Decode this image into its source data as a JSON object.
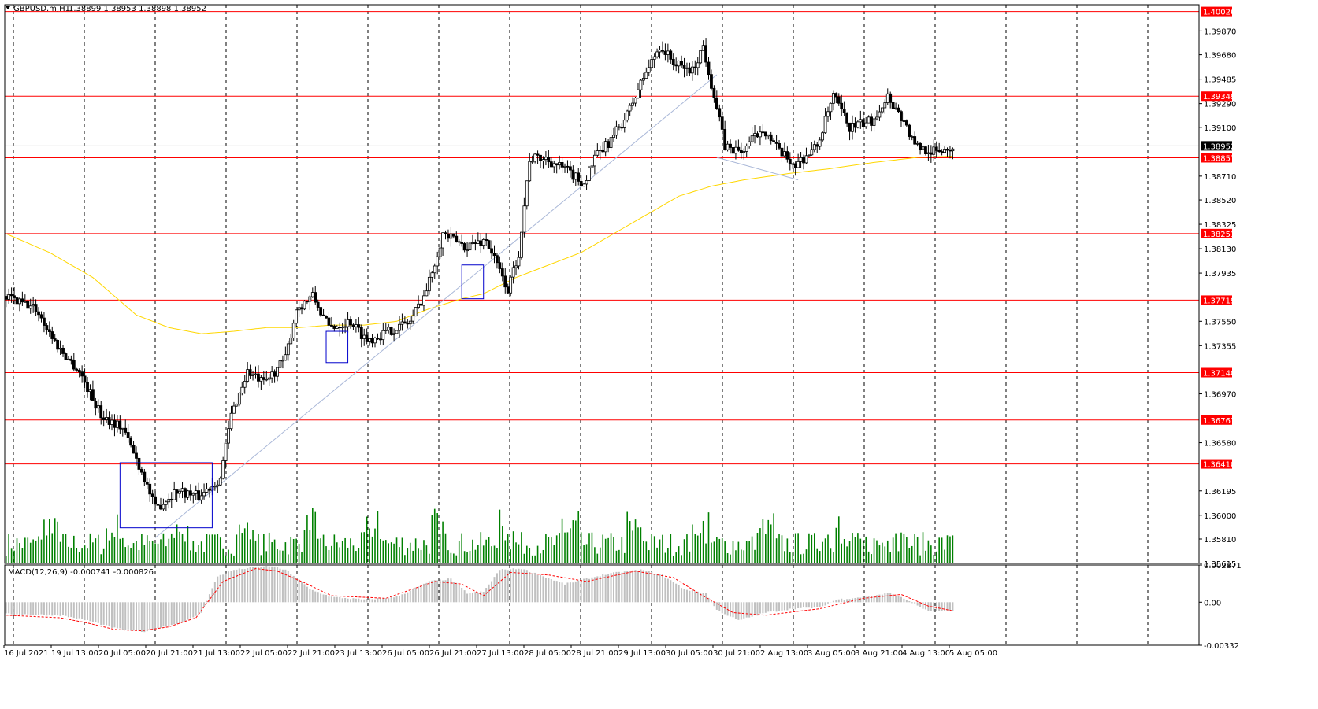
{
  "header": {
    "symbol": "GBPUSD.m,H1",
    "ohlc": "1.38899 1.38953 1.38898 1.38952"
  },
  "macd": {
    "label": "MACD(12,26,9) -0.000741 -0.000826",
    "axis_ticks": [
      "0.002871",
      "0.00",
      "-0.00332"
    ]
  },
  "colors": {
    "candle": "#000000",
    "level_line": "#ff0000",
    "ma_line": "#ffd700",
    "volume": "#008000",
    "macd_hist": "#c0c0c0",
    "macd_signal": "#ff0000",
    "box": "#0000cc",
    "trendline": "#aab8d8"
  },
  "chart_data": {
    "type": "candlestick",
    "symbol": "GBPUSD.m",
    "timeframe": "H1",
    "ylim": [
      1.35615,
      1.4008
    ],
    "y_ticks": [
      "1.39870",
      "1.39680",
      "1.39485",
      "1.39290",
      "1.39100",
      "1.38710",
      "1.38520",
      "1.38325",
      "1.38130",
      "1.37935",
      "1.37550",
      "1.37355",
      "1.36970",
      "1.36580",
      "1.36195",
      "1.36000",
      "1.35810",
      "1.35615"
    ],
    "x_labels": [
      "16 Jul 2021",
      "19 Jul 13:00",
      "20 Jul 05:00",
      "20 Jul 21:00",
      "21 Jul 13:00",
      "22 Jul 05:00",
      "22 Jul 21:00",
      "23 Jul 13:00",
      "26 Jul 05:00",
      "26 Jul 21:00",
      "27 Jul 13:00",
      "28 Jul 05:00",
      "28 Jul 21:00",
      "29 Jul 13:00",
      "30 Jul 05:00",
      "30 Jul 21:00",
      "2 Aug 13:00",
      "3 Aug 05:00",
      "3 Aug 21:00",
      "4 Aug 13:00",
      "5 Aug 05:00"
    ],
    "levels": [
      "1.40026",
      "1.39349",
      "1.38857",
      "1.38251",
      "1.37719",
      "1.37140",
      "1.36761",
      "1.36410"
    ],
    "current_price": "1.38952",
    "price_path": [
      [
        0,
        1.3775
      ],
      [
        12,
        1.3765
      ],
      [
        20,
        1.3735
      ],
      [
        28,
        1.3715
      ],
      [
        36,
        1.368
      ],
      [
        44,
        1.367
      ],
      [
        52,
        1.363
      ],
      [
        56,
        1.3605
      ],
      [
        64,
        1.362
      ],
      [
        72,
        1.3615
      ],
      [
        80,
        1.363
      ],
      [
        84,
        1.368
      ],
      [
        90,
        1.3715
      ],
      [
        96,
        1.3705
      ],
      [
        104,
        1.3725
      ],
      [
        108,
        1.3765
      ],
      [
        114,
        1.3775
      ],
      [
        120,
        1.375
      ],
      [
        128,
        1.3755
      ],
      [
        134,
        1.374
      ],
      [
        140,
        1.3745
      ],
      [
        150,
        1.3755
      ],
      [
        156,
        1.378
      ],
      [
        162,
        1.3825
      ],
      [
        170,
        1.3815
      ],
      [
        178,
        1.382
      ],
      [
        182,
        1.38
      ],
      [
        186,
        1.378
      ],
      [
        190,
        1.381
      ],
      [
        194,
        1.3885
      ],
      [
        200,
        1.3885
      ],
      [
        208,
        1.3875
      ],
      [
        214,
        1.3865
      ],
      [
        218,
        1.3885
      ],
      [
        224,
        1.39
      ],
      [
        230,
        1.392
      ],
      [
        236,
        1.395
      ],
      [
        242,
        1.3975
      ],
      [
        248,
        1.396
      ],
      [
        254,
        1.3955
      ],
      [
        258,
        1.3975
      ],
      [
        262,
        1.3935
      ],
      [
        266,
        1.3895
      ],
      [
        272,
        1.389
      ],
      [
        280,
        1.391
      ],
      [
        286,
        1.389
      ],
      [
        292,
        1.388
      ],
      [
        300,
        1.3895
      ],
      [
        306,
        1.3935
      ],
      [
        312,
        1.391
      ],
      [
        320,
        1.3915
      ],
      [
        326,
        1.3935
      ],
      [
        332,
        1.3915
      ],
      [
        336,
        1.3895
      ],
      [
        344,
        1.389
      ],
      [
        350,
        1.3895
      ]
    ],
    "ma_path": [
      [
        0,
        1.3825
      ],
      [
        16,
        1.381
      ],
      [
        32,
        1.379
      ],
      [
        48,
        1.376
      ],
      [
        60,
        1.375
      ],
      [
        72,
        1.3745
      ],
      [
        84,
        1.3747
      ],
      [
        96,
        1.375
      ],
      [
        108,
        1.375
      ],
      [
        120,
        1.3752
      ],
      [
        132,
        1.3752
      ],
      [
        144,
        1.3755
      ],
      [
        156,
        1.3765
      ],
      [
        168,
        1.3773
      ],
      [
        176,
        1.3777
      ],
      [
        188,
        1.379
      ],
      [
        200,
        1.38
      ],
      [
        212,
        1.381
      ],
      [
        224,
        1.3825
      ],
      [
        236,
        1.384
      ],
      [
        248,
        1.3855
      ],
      [
        260,
        1.3863
      ],
      [
        272,
        1.3868
      ],
      [
        288,
        1.3873
      ],
      [
        304,
        1.3877
      ],
      [
        320,
        1.3882
      ],
      [
        336,
        1.3886
      ],
      [
        350,
        1.3887
      ]
    ],
    "boxes": [
      {
        "x0": 42,
        "x1": 76,
        "y0": 1.359,
        "y1": 1.3642
      },
      {
        "x0": 118,
        "x1": 126,
        "y0": 1.3722,
        "y1": 1.3747
      },
      {
        "x0": 168,
        "x1": 176,
        "y0": 1.3773,
        "y1": 1.38
      }
    ],
    "trendlines": [
      {
        "x0": 55,
        "y0": 1.3582,
        "x1": 262,
        "y1": 1.3952
      },
      {
        "x0": 262,
        "y0": 1.3886,
        "x1": 292,
        "y1": 1.3868
      }
    ],
    "macd_hist_path": [
      [
        0,
        -0.0009
      ],
      [
        20,
        -0.001
      ],
      [
        30,
        -0.0014
      ],
      [
        40,
        -0.002
      ],
      [
        50,
        -0.0023
      ],
      [
        60,
        -0.0018
      ],
      [
        66,
        -0.0015
      ],
      [
        72,
        -0.0008
      ],
      [
        78,
        0.002
      ],
      [
        84,
        0.0025
      ],
      [
        92,
        0.0027
      ],
      [
        98,
        0.0028
      ],
      [
        104,
        0.0024
      ],
      [
        112,
        0.001
      ],
      [
        120,
        0.0004
      ],
      [
        132,
        0.0002
      ],
      [
        144,
        0.0004
      ],
      [
        156,
        0.0016
      ],
      [
        164,
        0.0018
      ],
      [
        170,
        0.0007
      ],
      [
        176,
        0.0008
      ],
      [
        182,
        0.0025
      ],
      [
        190,
        0.0026
      ],
      [
        198,
        0.002
      ],
      [
        206,
        0.0014
      ],
      [
        214,
        0.0018
      ],
      [
        222,
        0.0022
      ],
      [
        234,
        0.0025
      ],
      [
        242,
        0.0021
      ],
      [
        250,
        0.001
      ],
      [
        258,
        0.0007
      ],
      [
        262,
        -0.0006
      ],
      [
        270,
        -0.0014
      ],
      [
        280,
        -0.0008
      ],
      [
        290,
        -0.0005
      ],
      [
        300,
        -0.0004
      ],
      [
        306,
        0.0002
      ],
      [
        316,
        0.0004
      ],
      [
        326,
        0.0007
      ],
      [
        332,
        0.0002
      ],
      [
        340,
        -0.0007
      ],
      [
        350,
        -0.0007
      ]
    ],
    "macd_signal_path": [
      [
        0,
        -0.001
      ],
      [
        20,
        -0.0012
      ],
      [
        30,
        -0.0016
      ],
      [
        40,
        -0.0021
      ],
      [
        50,
        -0.0022
      ],
      [
        60,
        -0.0019
      ],
      [
        70,
        -0.0012
      ],
      [
        80,
        0.0016
      ],
      [
        92,
        0.0026
      ],
      [
        100,
        0.0024
      ],
      [
        110,
        0.0015
      ],
      [
        120,
        0.0005
      ],
      [
        140,
        0.0003
      ],
      [
        158,
        0.0016
      ],
      [
        168,
        0.0014
      ],
      [
        176,
        0.0005
      ],
      [
        186,
        0.0023
      ],
      [
        200,
        0.0021
      ],
      [
        214,
        0.0016
      ],
      [
        232,
        0.0024
      ],
      [
        246,
        0.0019
      ],
      [
        256,
        0.0006
      ],
      [
        268,
        -0.0008
      ],
      [
        280,
        -0.001
      ],
      [
        300,
        -0.0005
      ],
      [
        316,
        0.0003
      ],
      [
        330,
        0.0006
      ],
      [
        340,
        -0.0003
      ],
      [
        350,
        -0.0007
      ]
    ],
    "macd_range": [
      -0.00332,
      0.002871
    ]
  }
}
